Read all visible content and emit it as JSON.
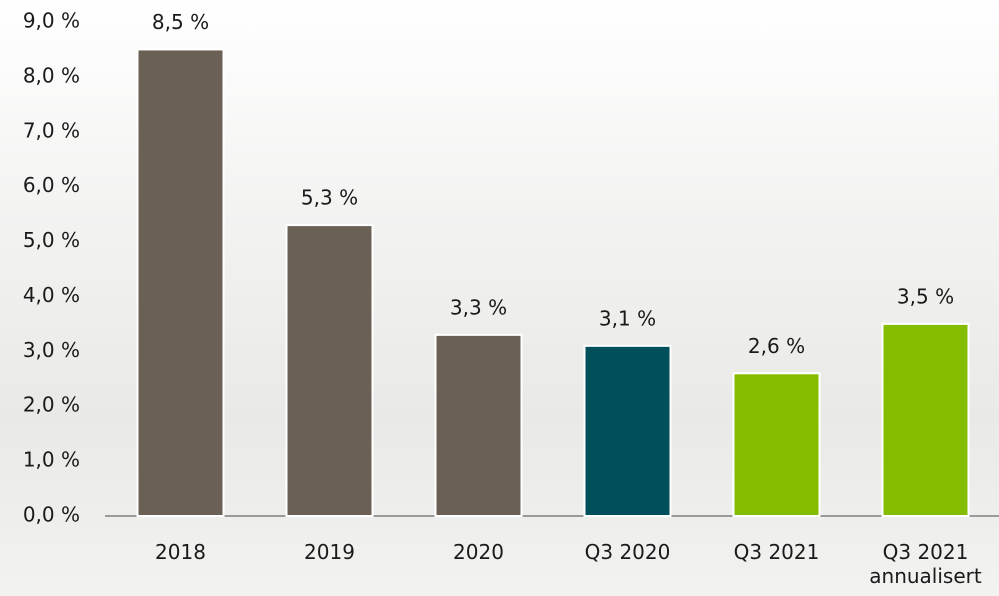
{
  "chart_data": {
    "type": "bar",
    "categories": [
      "2018",
      "2019",
      "2020",
      "Q3 2020",
      "Q3 2021",
      "Q3 2021 annualisert"
    ],
    "values": [
      8.5,
      5.3,
      3.3,
      3.1,
      2.6,
      3.5
    ],
    "value_labels": [
      "8,5 %",
      "5,3 %",
      "3,3 %",
      "3,1 %",
      "2,6 %",
      "3,5 %"
    ],
    "colors": [
      "#6b6055",
      "#6b6055",
      "#6b6055",
      "#004f5a",
      "#84bd00",
      "#84bd00"
    ],
    "ylim": [
      0,
      9
    ],
    "yticks": [
      {
        "value": 0,
        "label": "0,0 %"
      },
      {
        "value": 1,
        "label": "1,0 %"
      },
      {
        "value": 2,
        "label": "2,0 %"
      },
      {
        "value": 3,
        "label": "3,0 %"
      },
      {
        "value": 4,
        "label": "4,0 %"
      },
      {
        "value": 5,
        "label": "5,0 %"
      },
      {
        "value": 6,
        "label": "6,0 %"
      },
      {
        "value": 7,
        "label": "7,0 %"
      },
      {
        "value": 8,
        "label": "8,0 %"
      },
      {
        "value": 9,
        "label": "9,0 %"
      }
    ],
    "grid": false
  }
}
